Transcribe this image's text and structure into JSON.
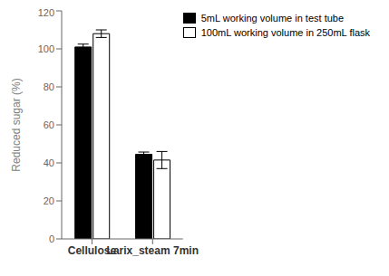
{
  "chart_data": {
    "type": "bar",
    "categories": [
      "Cellulose",
      "Larix_steam 7min"
    ],
    "series": [
      {
        "name": "5mL working volume in test tube",
        "color": "#000000",
        "values": [
          101.0,
          44.5
        ],
        "errors": [
          1.5,
          1.2
        ]
      },
      {
        "name": "100mL working volume in 250mL flask",
        "color": "#ffffff",
        "values": [
          108.0,
          41.5
        ],
        "errors": [
          2.0,
          4.5
        ]
      }
    ],
    "ylabel": "Reduced sugar (%)",
    "ylim": [
      0,
      120
    ],
    "yticks": [
      0,
      20,
      40,
      60,
      80,
      100,
      120
    ],
    "grid": false,
    "legend": "upper right"
  }
}
